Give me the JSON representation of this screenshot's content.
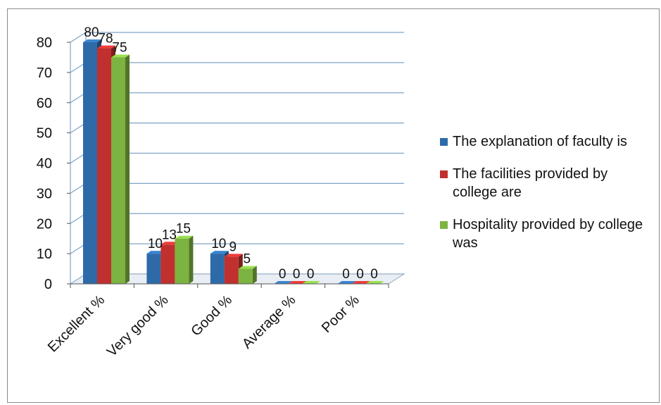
{
  "chart_data": {
    "type": "bar",
    "categories": [
      "Excellent %",
      "Very good %",
      "Good %",
      "Average %",
      "Poor %"
    ],
    "series": [
      {
        "name": "The explanation of faculty is",
        "values": [
          80,
          10,
          10,
          0,
          0
        ],
        "color": "#2e6aa8"
      },
      {
        "name": "The facilities provided by college are",
        "values": [
          78,
          13,
          9,
          0,
          0
        ],
        "color": "#c0302e"
      },
      {
        "name": "Hospitality provided by college was",
        "values": [
          75,
          15,
          5,
          0,
          0
        ],
        "color": "#7cb341"
      }
    ],
    "yticks": [
      "0",
      "10",
      "20",
      "30",
      "40",
      "50",
      "60",
      "70",
      "80"
    ],
    "ylim": [
      0,
      80
    ],
    "grid": true,
    "legend": "right",
    "title": "",
    "xlabel": "",
    "ylabel": ""
  }
}
